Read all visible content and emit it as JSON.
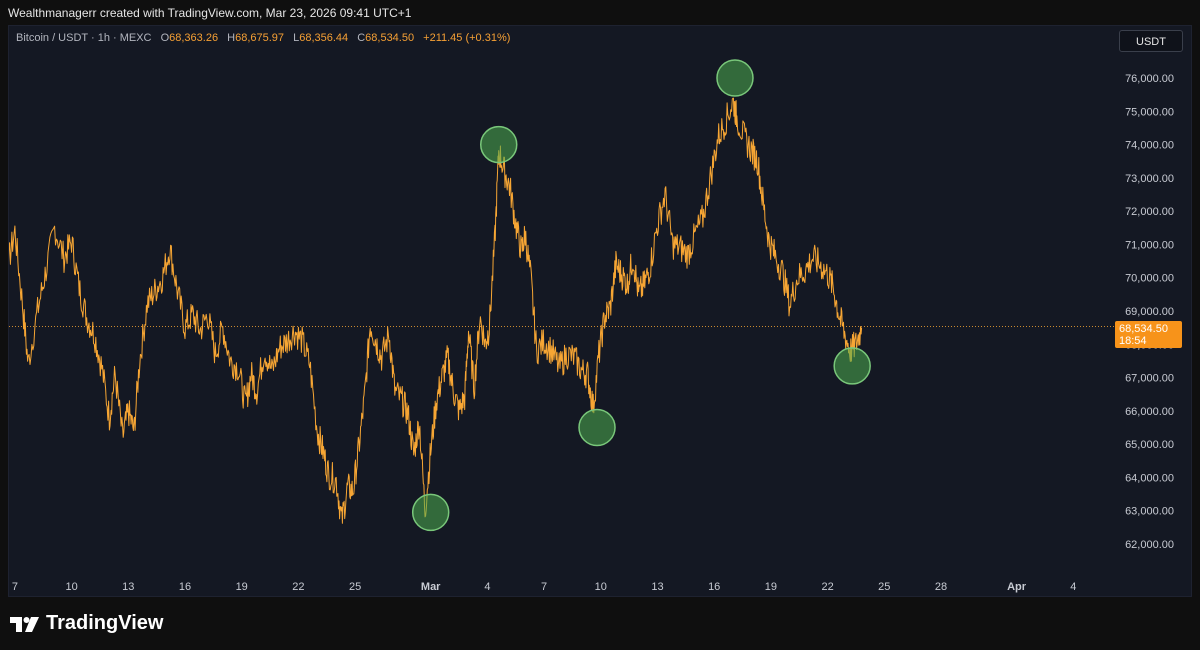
{
  "header": {
    "credit": "Wealthmanagerr created with TradingView.com, Mar 23, 2026 09:41 UTC+1"
  },
  "legend": {
    "symbol": "Bitcoin / USDT · 1h · MEXC",
    "o_label": "O",
    "o": "68,363.26",
    "h_label": "H",
    "h": "68,675.97",
    "l_label": "L",
    "l": "68,356.44",
    "c_label": "C",
    "c": "68,534.50",
    "change": "+211.45 (+0.31%)"
  },
  "currency_button": "USDT",
  "price_tag": {
    "price": "68,534.50",
    "countdown": "18:54"
  },
  "footer": {
    "brand": "TradingView"
  },
  "colors": {
    "price_line": "#f7a634",
    "marker": "#3fa63f",
    "tag": "#f7931a"
  },
  "chart_data": {
    "type": "line",
    "title": "Bitcoin / USDT · 1h · MEXC",
    "x_label": "",
    "y_label": "",
    "ylim": [
      61500,
      77000
    ],
    "y_ticks": [
      62000,
      63000,
      64000,
      65000,
      66000,
      67000,
      68000,
      69000,
      70000,
      71000,
      72000,
      73000,
      74000,
      75000,
      76000
    ],
    "y_tick_labels": [
      "62,000.00",
      "63,000.00",
      "64,000.00",
      "65,000.00",
      "66,000.00",
      "67,000.00",
      "68,000.00",
      "69,000.00",
      "70,000.00",
      "71,000.00",
      "72,000.00",
      "73,000.00",
      "74,000.00",
      "75,000.00",
      "76,000.00"
    ],
    "x_ticks": [
      {
        "day": 7,
        "label": "7"
      },
      {
        "day": 10,
        "label": "10"
      },
      {
        "day": 13,
        "label": "13"
      },
      {
        "day": 16,
        "label": "16"
      },
      {
        "day": 19,
        "label": "19"
      },
      {
        "day": 22,
        "label": "22"
      },
      {
        "day": 25,
        "label": "25"
      },
      {
        "day": 29,
        "label": "Mar"
      },
      {
        "day": 32,
        "label": "4"
      },
      {
        "day": 35,
        "label": "7"
      },
      {
        "day": 38,
        "label": "10"
      },
      {
        "day": 41,
        "label": "13"
      },
      {
        "day": 44,
        "label": "16"
      },
      {
        "day": 47,
        "label": "19"
      },
      {
        "day": 50,
        "label": "22"
      },
      {
        "day": 53,
        "label": "25"
      },
      {
        "day": 56,
        "label": "28"
      },
      {
        "day": 60,
        "label": "Apr"
      },
      {
        "day": 63,
        "label": "4"
      }
    ],
    "x_range_days": [
      5.5,
      64.5
    ],
    "series": [
      {
        "values": [
          [
            6.0,
            64500
          ],
          [
            6.3,
            67200
          ],
          [
            6.6,
            70300
          ],
          [
            7.0,
            71400
          ],
          [
            7.4,
            69200
          ],
          [
            7.7,
            67400
          ],
          [
            8.2,
            69000
          ],
          [
            8.6,
            70100
          ],
          [
            9.1,
            71500
          ],
          [
            9.6,
            70600
          ],
          [
            10.0,
            71100
          ],
          [
            10.4,
            69700
          ],
          [
            10.8,
            68800
          ],
          [
            11.2,
            68300
          ],
          [
            11.6,
            67300
          ],
          [
            12.0,
            65800
          ],
          [
            12.3,
            67100
          ],
          [
            12.7,
            65200
          ],
          [
            13.0,
            66000
          ],
          [
            13.3,
            65400
          ],
          [
            13.6,
            67500
          ],
          [
            14.0,
            69200
          ],
          [
            14.4,
            69600
          ],
          [
            14.8,
            70000
          ],
          [
            15.2,
            70900
          ],
          [
            15.6,
            69600
          ],
          [
            16.0,
            68500
          ],
          [
            16.4,
            68900
          ],
          [
            16.8,
            68400
          ],
          [
            17.2,
            68900
          ],
          [
            17.6,
            67700
          ],
          [
            18.0,
            68500
          ],
          [
            18.4,
            67500
          ],
          [
            18.8,
            67300
          ],
          [
            19.2,
            66200
          ],
          [
            19.5,
            67100
          ],
          [
            19.8,
            66600
          ],
          [
            20.2,
            67800
          ],
          [
            20.6,
            67200
          ],
          [
            21.0,
            67900
          ],
          [
            21.4,
            68100
          ],
          [
            21.8,
            68400
          ],
          [
            22.2,
            68100
          ],
          [
            22.6,
            67400
          ],
          [
            23.0,
            65400
          ],
          [
            23.3,
            64800
          ],
          [
            23.6,
            64100
          ],
          [
            24.0,
            63900
          ],
          [
            24.3,
            62700
          ],
          [
            24.6,
            63700
          ],
          [
            24.9,
            63600
          ],
          [
            25.2,
            64900
          ],
          [
            25.5,
            66400
          ],
          [
            25.8,
            68600
          ],
          [
            26.1,
            68100
          ],
          [
            26.4,
            67600
          ],
          [
            26.8,
            68300
          ],
          [
            27.1,
            66600
          ],
          [
            27.5,
            66300
          ],
          [
            27.8,
            65900
          ],
          [
            28.1,
            64700
          ],
          [
            28.4,
            65700
          ],
          [
            28.7,
            63000
          ],
          [
            29.0,
            64800
          ],
          [
            29.3,
            66300
          ],
          [
            29.6,
            67000
          ],
          [
            29.9,
            67600
          ],
          [
            30.2,
            66600
          ],
          [
            30.5,
            66000
          ],
          [
            30.8,
            66400
          ],
          [
            31.0,
            68400
          ],
          [
            31.3,
            66700
          ],
          [
            31.6,
            68800
          ],
          [
            31.9,
            68000
          ],
          [
            32.1,
            68500
          ],
          [
            32.4,
            71200
          ],
          [
            32.6,
            73800
          ],
          [
            32.9,
            73200
          ],
          [
            33.2,
            72700
          ],
          [
            33.5,
            71600
          ],
          [
            33.8,
            70800
          ],
          [
            34.0,
            71300
          ],
          [
            34.3,
            70000
          ],
          [
            34.6,
            67800
          ],
          [
            35.0,
            68100
          ],
          [
            35.4,
            67800
          ],
          [
            35.8,
            67300
          ],
          [
            36.2,
            67700
          ],
          [
            36.6,
            67600
          ],
          [
            37.0,
            67200
          ],
          [
            37.3,
            67100
          ],
          [
            37.6,
            66100
          ],
          [
            37.9,
            67700
          ],
          [
            38.2,
            68800
          ],
          [
            38.5,
            69100
          ],
          [
            38.8,
            70400
          ],
          [
            39.1,
            70100
          ],
          [
            39.4,
            69800
          ],
          [
            39.7,
            70600
          ],
          [
            40.0,
            69500
          ],
          [
            40.3,
            69800
          ],
          [
            40.6,
            70300
          ],
          [
            41.0,
            71600
          ],
          [
            41.4,
            72500
          ],
          [
            41.8,
            71000
          ],
          [
            42.2,
            70900
          ],
          [
            42.6,
            70700
          ],
          [
            43.0,
            71300
          ],
          [
            43.4,
            71800
          ],
          [
            43.8,
            73000
          ],
          [
            44.2,
            74200
          ],
          [
            44.6,
            74700
          ],
          [
            45.0,
            75300
          ],
          [
            45.2,
            74800
          ],
          [
            45.6,
            74200
          ],
          [
            46.0,
            73800
          ],
          [
            46.3,
            73500
          ],
          [
            46.6,
            72200
          ],
          [
            46.9,
            71100
          ],
          [
            47.2,
            70700
          ],
          [
            47.6,
            70200
          ],
          [
            48.0,
            69200
          ],
          [
            48.4,
            70000
          ],
          [
            48.8,
            70200
          ],
          [
            49.2,
            70600
          ],
          [
            49.6,
            70400
          ],
          [
            50.0,
            70100
          ],
          [
            50.3,
            69700
          ],
          [
            50.6,
            68900
          ],
          [
            50.9,
            68300
          ],
          [
            51.2,
            67800
          ],
          [
            51.5,
            68000
          ],
          [
            51.8,
            68500
          ]
        ]
      }
    ],
    "current_price": 68534.5,
    "highlighted_points": [
      {
        "day": 29.0,
        "price": 62950
      },
      {
        "day": 32.6,
        "price": 74000
      },
      {
        "day": 37.8,
        "price": 65500
      },
      {
        "day": 45.1,
        "price": 76000
      },
      {
        "day": 51.3,
        "price": 67350
      }
    ]
  }
}
